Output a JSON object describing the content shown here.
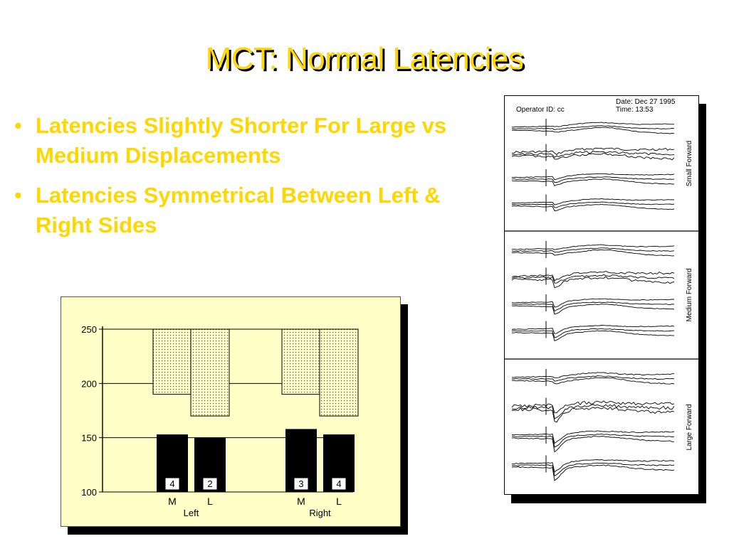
{
  "slide": {
    "title": "MCT: Normal Latencies",
    "bullets": [
      "Latencies Slightly Shorter For Large vs Medium Displacements",
      "Latencies Symmetrical Between Left & Right Sides"
    ],
    "bullet_glyph": "•",
    "colors": {
      "title": "#ffd700",
      "bullet_text": "#ffd700",
      "chart_background": "#ffffc8"
    }
  },
  "chart_data": [
    {
      "type": "bar",
      "ylim": [
        100,
        250
      ],
      "y_ticks": [
        "250",
        "200",
        "150",
        "100"
      ],
      "grid": "horizontal at each tick",
      "groups": [
        "Left",
        "Right"
      ],
      "categories": [
        "M",
        "L",
        "M",
        "L"
      ],
      "category_group": [
        "Left",
        "Left",
        "Right",
        "Right"
      ],
      "values": [
        153,
        150,
        158,
        153
      ],
      "bar_counts": [
        "4",
        "2",
        "3",
        "4"
      ],
      "normal_ranges": [
        [
          190,
          250
        ],
        [
          170,
          250
        ],
        [
          190,
          250
        ],
        [
          170,
          250
        ]
      ]
    },
    {
      "type": "line",
      "header": {
        "operator": "Operator ID: cc",
        "date": "Date: Dec 27 1995",
        "time": "Time: 13:53"
      },
      "panels": [
        "Small Forward",
        "Medium Forward",
        "Large Forward"
      ],
      "traces_per_panel": 4
    }
  ]
}
